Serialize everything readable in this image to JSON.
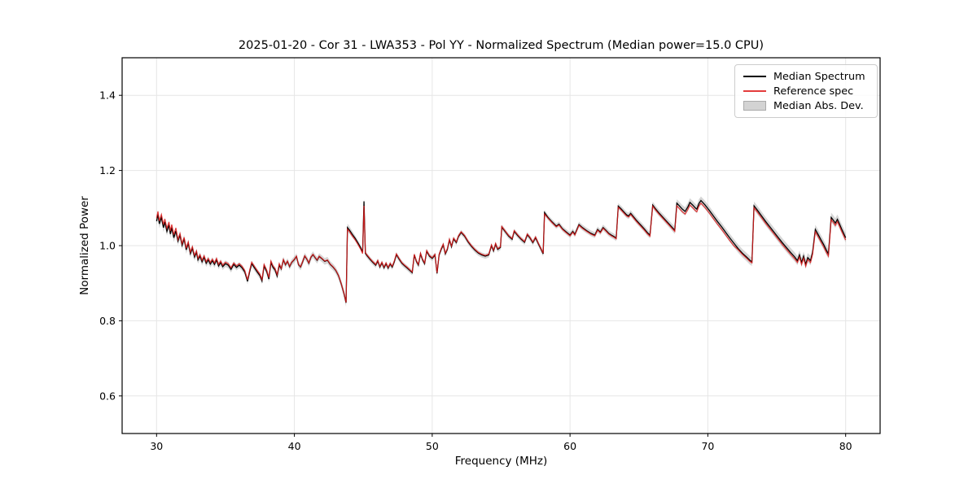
{
  "title": "2025-01-20 - Cor 31 - LWA353 - Pol YY - Normalized Spectrum (Median power=15.0 CPU)",
  "axes": {
    "xlabel": "Frequency (MHz)",
    "ylabel": "Normalized Power",
    "xlim": [
      27.5,
      82.5
    ],
    "ylim": [
      0.5,
      1.5
    ],
    "xticks": [
      30,
      40,
      50,
      60,
      70,
      80
    ],
    "xtick_labels": [
      "30",
      "40",
      "50",
      "60",
      "70",
      "80"
    ],
    "yticks": [
      0.6,
      0.8,
      1.0,
      1.2,
      1.4
    ],
    "ytick_labels": [
      "0.6",
      "0.8",
      "1.0",
      "1.2",
      "1.4"
    ],
    "grid": true
  },
  "colors": {
    "median_line": "#000000",
    "reference_line": "rgba(222,25,25,0.85)",
    "mad_band": "rgba(128,128,128,0.32)",
    "legend_patch_fill": "#d3d3d3",
    "legend_patch_edge": "#aaaaaa",
    "gridline": "#e6e6e6",
    "spine": "#000000"
  },
  "legend": {
    "entries": [
      {
        "label": "Median Spectrum",
        "type": "line",
        "color": "#000000"
      },
      {
        "label": "Reference spec",
        "type": "line",
        "color": "rgba(222,25,25,0.85)"
      },
      {
        "label": "Median Abs. Dev.",
        "type": "patch",
        "color": "#d3d3d3"
      }
    ]
  },
  "chart_data": {
    "type": "line",
    "title": "2025-01-20 - Cor 31 - LWA353 - Pol YY - Normalized Spectrum (Median power=15.0 CPU)",
    "xlabel": "Frequency (MHz)",
    "ylabel": "Normalized Power",
    "xlim": [
      27.5,
      82.5
    ],
    "ylim": [
      0.5,
      1.5
    ],
    "legend_position": "upper right",
    "series_names": [
      "Median Spectrum",
      "Reference spec",
      "Median Abs. Dev."
    ],
    "points": [
      [
        30.0,
        1.065
      ],
      [
        30.1,
        1.083
      ],
      [
        30.2,
        1.058
      ],
      [
        30.35,
        1.075
      ],
      [
        30.5,
        1.048
      ],
      [
        30.6,
        1.063
      ],
      [
        30.75,
        1.038
      ],
      [
        30.9,
        1.055
      ],
      [
        31.0,
        1.031
      ],
      [
        31.1,
        1.048
      ],
      [
        31.25,
        1.021
      ],
      [
        31.4,
        1.039
      ],
      [
        31.55,
        1.012
      ],
      [
        31.7,
        1.028
      ],
      [
        31.85,
        1.001
      ],
      [
        32.0,
        1.018
      ],
      [
        32.15,
        0.989
      ],
      [
        32.3,
        1.006
      ],
      [
        32.45,
        0.979
      ],
      [
        32.6,
        0.993
      ],
      [
        32.75,
        0.97
      ],
      [
        32.9,
        0.982
      ],
      [
        33.0,
        0.962
      ],
      [
        33.15,
        0.972
      ],
      [
        33.3,
        0.957
      ],
      [
        33.45,
        0.969
      ],
      [
        33.6,
        0.953
      ],
      [
        33.75,
        0.962
      ],
      [
        33.9,
        0.951
      ],
      [
        34.05,
        0.96
      ],
      [
        34.2,
        0.95
      ],
      [
        34.35,
        0.962
      ],
      [
        34.5,
        0.946
      ],
      [
        34.65,
        0.955
      ],
      [
        34.8,
        0.944
      ],
      [
        35.0,
        0.952
      ],
      [
        35.2,
        0.948
      ],
      [
        35.4,
        0.937
      ],
      [
        35.6,
        0.95
      ],
      [
        35.8,
        0.942
      ],
      [
        36.0,
        0.948
      ],
      [
        36.2,
        0.941
      ],
      [
        36.4,
        0.93
      ],
      [
        36.6,
        0.905
      ],
      [
        36.75,
        0.93
      ],
      [
        36.9,
        0.952
      ],
      [
        37.1,
        0.941
      ],
      [
        37.3,
        0.93
      ],
      [
        37.5,
        0.92
      ],
      [
        37.65,
        0.906
      ],
      [
        37.8,
        0.946
      ],
      [
        38.0,
        0.93
      ],
      [
        38.15,
        0.911
      ],
      [
        38.3,
        0.955
      ],
      [
        38.45,
        0.942
      ],
      [
        38.6,
        0.935
      ],
      [
        38.75,
        0.919
      ],
      [
        38.9,
        0.948
      ],
      [
        39.05,
        0.938
      ],
      [
        39.2,
        0.962
      ],
      [
        39.35,
        0.949
      ],
      [
        39.5,
        0.958
      ],
      [
        39.65,
        0.944
      ],
      [
        39.8,
        0.955
      ],
      [
        40.0,
        0.963
      ],
      [
        40.15,
        0.971
      ],
      [
        40.3,
        0.949
      ],
      [
        40.45,
        0.943
      ],
      [
        40.6,
        0.957
      ],
      [
        40.75,
        0.972
      ],
      [
        40.9,
        0.964
      ],
      [
        41.05,
        0.953
      ],
      [
        41.2,
        0.969
      ],
      [
        41.35,
        0.976
      ],
      [
        41.5,
        0.968
      ],
      [
        41.65,
        0.961
      ],
      [
        41.8,
        0.971
      ],
      [
        42.0,
        0.965
      ],
      [
        42.2,
        0.958
      ],
      [
        42.4,
        0.961
      ],
      [
        42.6,
        0.95
      ],
      [
        42.8,
        0.943
      ],
      [
        43.0,
        0.934
      ],
      [
        43.2,
        0.92
      ],
      [
        43.4,
        0.898
      ],
      [
        43.6,
        0.872
      ],
      [
        43.75,
        0.848
      ],
      [
        43.85,
        1.048
      ],
      [
        44.0,
        1.041
      ],
      [
        44.2,
        1.03
      ],
      [
        44.4,
        1.02
      ],
      [
        44.6,
        1.008
      ],
      [
        44.8,
        0.995
      ],
      [
        44.95,
        0.983
      ],
      [
        45.05,
        1.118
      ],
      [
        45.15,
        0.979
      ],
      [
        45.3,
        0.972
      ],
      [
        45.5,
        0.963
      ],
      [
        45.7,
        0.955
      ],
      [
        45.9,
        0.948
      ],
      [
        46.05,
        0.959
      ],
      [
        46.2,
        0.943
      ],
      [
        46.35,
        0.954
      ],
      [
        46.5,
        0.941
      ],
      [
        46.65,
        0.952
      ],
      [
        46.8,
        0.94
      ],
      [
        46.95,
        0.951
      ],
      [
        47.1,
        0.943
      ],
      [
        47.25,
        0.957
      ],
      [
        47.4,
        0.976
      ],
      [
        47.6,
        0.964
      ],
      [
        47.8,
        0.953
      ],
      [
        48.0,
        0.946
      ],
      [
        48.2,
        0.94
      ],
      [
        48.4,
        0.933
      ],
      [
        48.55,
        0.928
      ],
      [
        48.7,
        0.975
      ],
      [
        48.85,
        0.958
      ],
      [
        49.0,
        0.948
      ],
      [
        49.15,
        0.978
      ],
      [
        49.3,
        0.962
      ],
      [
        49.45,
        0.952
      ],
      [
        49.6,
        0.985
      ],
      [
        49.8,
        0.972
      ],
      [
        50.0,
        0.966
      ],
      [
        50.2,
        0.975
      ],
      [
        50.35,
        0.926
      ],
      [
        50.5,
        0.975
      ],
      [
        50.65,
        0.99
      ],
      [
        50.8,
        1.002
      ],
      [
        50.95,
        0.978
      ],
      [
        51.1,
        0.99
      ],
      [
        51.25,
        1.015
      ],
      [
        51.4,
        0.997
      ],
      [
        51.55,
        1.018
      ],
      [
        51.75,
        1.008
      ],
      [
        51.9,
        1.024
      ],
      [
        52.1,
        1.035
      ],
      [
        52.35,
        1.025
      ],
      [
        52.6,
        1.01
      ],
      [
        52.85,
        0.998
      ],
      [
        53.1,
        0.988
      ],
      [
        53.35,
        0.98
      ],
      [
        53.6,
        0.975
      ],
      [
        53.85,
        0.972
      ],
      [
        54.1,
        0.975
      ],
      [
        54.3,
        1.0
      ],
      [
        54.45,
        0.986
      ],
      [
        54.6,
        1.004
      ],
      [
        54.75,
        0.99
      ],
      [
        54.95,
        0.995
      ],
      [
        55.05,
        1.049
      ],
      [
        55.3,
        1.037
      ],
      [
        55.55,
        1.025
      ],
      [
        55.8,
        1.017
      ],
      [
        55.95,
        1.038
      ],
      [
        56.2,
        1.027
      ],
      [
        56.45,
        1.017
      ],
      [
        56.7,
        1.009
      ],
      [
        56.9,
        1.029
      ],
      [
        57.1,
        1.02
      ],
      [
        57.3,
        1.008
      ],
      [
        57.5,
        1.021
      ],
      [
        57.7,
        1.005
      ],
      [
        57.9,
        0.99
      ],
      [
        58.05,
        0.978
      ],
      [
        58.15,
        1.088
      ],
      [
        58.4,
        1.075
      ],
      [
        58.7,
        1.063
      ],
      [
        59.0,
        1.052
      ],
      [
        59.2,
        1.057
      ],
      [
        59.45,
        1.045
      ],
      [
        59.7,
        1.037
      ],
      [
        60.0,
        1.028
      ],
      [
        60.2,
        1.038
      ],
      [
        60.35,
        1.03
      ],
      [
        60.5,
        1.043
      ],
      [
        60.65,
        1.056
      ],
      [
        60.9,
        1.048
      ],
      [
        61.2,
        1.04
      ],
      [
        61.5,
        1.033
      ],
      [
        61.8,
        1.028
      ],
      [
        62.0,
        1.043
      ],
      [
        62.2,
        1.036
      ],
      [
        62.4,
        1.048
      ],
      [
        62.6,
        1.041
      ],
      [
        62.8,
        1.033
      ],
      [
        63.0,
        1.028
      ],
      [
        63.2,
        1.024
      ],
      [
        63.35,
        1.02
      ],
      [
        63.5,
        1.105
      ],
      [
        63.7,
        1.098
      ],
      [
        63.9,
        1.09
      ],
      [
        64.1,
        1.082
      ],
      [
        64.25,
        1.079
      ],
      [
        64.4,
        1.086
      ],
      [
        64.6,
        1.077
      ],
      [
        64.8,
        1.068
      ],
      [
        65.0,
        1.06
      ],
      [
        65.2,
        1.052
      ],
      [
        65.4,
        1.044
      ],
      [
        65.6,
        1.035
      ],
      [
        65.8,
        1.028
      ],
      [
        66.0,
        1.108
      ],
      [
        66.2,
        1.098
      ],
      [
        66.45,
        1.087
      ],
      [
        66.7,
        1.077
      ],
      [
        66.95,
        1.067
      ],
      [
        67.2,
        1.057
      ],
      [
        67.45,
        1.047
      ],
      [
        67.6,
        1.041
      ],
      [
        67.75,
        1.113
      ],
      [
        67.95,
        1.105
      ],
      [
        68.15,
        1.097
      ],
      [
        68.35,
        1.091
      ],
      [
        68.55,
        1.103
      ],
      [
        68.7,
        1.115
      ],
      [
        68.9,
        1.108
      ],
      [
        69.1,
        1.1
      ],
      [
        69.2,
        1.097
      ],
      [
        69.35,
        1.112
      ],
      [
        69.5,
        1.12
      ],
      [
        69.8,
        1.108
      ],
      [
        70.1,
        1.094
      ],
      [
        70.4,
        1.079
      ],
      [
        70.7,
        1.064
      ],
      [
        71.0,
        1.05
      ],
      [
        71.3,
        1.035
      ],
      [
        71.6,
        1.02
      ],
      [
        71.9,
        1.006
      ],
      [
        72.2,
        0.992
      ],
      [
        72.5,
        0.98
      ],
      [
        72.8,
        0.97
      ],
      [
        73.05,
        0.961
      ],
      [
        73.2,
        0.957
      ],
      [
        73.35,
        1.106
      ],
      [
        73.6,
        1.094
      ],
      [
        73.9,
        1.079
      ],
      [
        74.2,
        1.064
      ],
      [
        74.5,
        1.05
      ],
      [
        74.8,
        1.036
      ],
      [
        75.1,
        1.022
      ],
      [
        75.4,
        1.008
      ],
      [
        75.7,
        0.995
      ],
      [
        76.0,
        0.982
      ],
      [
        76.3,
        0.97
      ],
      [
        76.5,
        0.96
      ],
      [
        76.65,
        0.975
      ],
      [
        76.8,
        0.955
      ],
      [
        76.95,
        0.972
      ],
      [
        77.1,
        0.95
      ],
      [
        77.25,
        0.968
      ],
      [
        77.45,
        0.96
      ],
      [
        77.6,
        0.982
      ],
      [
        77.8,
        1.043
      ],
      [
        78.0,
        1.03
      ],
      [
        78.2,
        1.016
      ],
      [
        78.4,
        1.003
      ],
      [
        78.6,
        0.988
      ],
      [
        78.75,
        0.978
      ],
      [
        78.95,
        1.075
      ],
      [
        79.1,
        1.068
      ],
      [
        79.25,
        1.06
      ],
      [
        79.4,
        1.07
      ],
      [
        79.55,
        1.058
      ],
      [
        79.7,
        1.045
      ],
      [
        79.85,
        1.033
      ],
      [
        80.0,
        1.021
      ]
    ],
    "reference_offsets": [
      [
        31.5,
        0.008
      ],
      [
        39.0,
        0.004
      ],
      [
        43.8,
        0.001
      ],
      [
        44.95,
        -0.004
      ],
      [
        45.1,
        -0.012
      ],
      [
        58.05,
        0.002
      ],
      [
        58.3,
        -0.004
      ],
      [
        63.4,
        -0.002
      ],
      [
        67.6,
        -0.003
      ],
      [
        72.0,
        -0.007
      ],
      [
        73.25,
        -0.003
      ],
      [
        77.7,
        -0.005
      ],
      [
        80.1,
        -0.006
      ]
    ],
    "mad_halfwidth": [
      [
        30.0,
        0.012
      ],
      [
        31.5,
        0.011
      ],
      [
        36.0,
        0.008
      ],
      [
        43.0,
        0.009
      ],
      [
        43.8,
        0.011
      ],
      [
        44.5,
        0.007
      ],
      [
        58.0,
        0.007
      ],
      [
        63.0,
        0.008
      ],
      [
        67.0,
        0.009
      ],
      [
        68.0,
        0.011
      ],
      [
        72.0,
        0.011
      ],
      [
        76.0,
        0.012
      ],
      [
        80.0,
        0.013
      ]
    ]
  }
}
